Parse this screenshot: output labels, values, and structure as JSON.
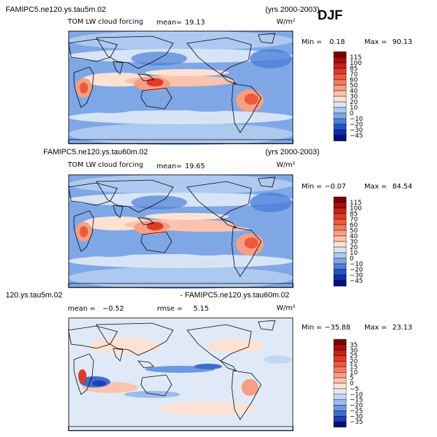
{
  "season": "DJF",
  "chart_data": [
    {
      "type": "heatmap",
      "case_title": "FAMIPC5.ne120.ys.tau5m.02",
      "years": "(yrs 2000-2003)",
      "variable": "TOM LW cloud forcing",
      "mean_label": "mean=",
      "mean": "19.13",
      "units": "W/m²",
      "min_label": "Min =",
      "min": "0.18",
      "max_label": "Max =",
      "max": "90.13",
      "colorbar": {
        "levels": [
          "115",
          "100",
          "85",
          "70",
          "60",
          "50",
          "40",
          "30",
          "20",
          "10",
          "0",
          "−10",
          "−20",
          "−30",
          "−45"
        ],
        "colors": [
          "#7a0000",
          "#a50f0f",
          "#c8201a",
          "#df3b27",
          "#ea5a3d",
          "#f27b5f",
          "#f79e84",
          "#fbc3ad",
          "#fde2d3",
          "#d6e4f5",
          "#adc9ef",
          "#7fa7e6",
          "#4e7fd9",
          "#2253c9",
          "#0d2fa8",
          "#06107a"
        ]
      }
    },
    {
      "type": "heatmap",
      "case_title": "FAMIPC5.ne120.ys.tau60m.02",
      "years": "(yrs 2000-2003)",
      "variable": "TOM LW cloud forcing",
      "mean_label": "mean=",
      "mean": "19.65",
      "units": "W/m²",
      "min_label": "Min =",
      "min": "−0.07",
      "max_label": "Max =",
      "max": "84.54",
      "colorbar": {
        "levels": [
          "115",
          "100",
          "85",
          "70",
          "60",
          "50",
          "40",
          "30",
          "20",
          "10",
          "0",
          "−10",
          "−20",
          "−30",
          "−45"
        ],
        "colors": [
          "#7a0000",
          "#a50f0f",
          "#c8201a",
          "#df3b27",
          "#ea5a3d",
          "#f27b5f",
          "#f79e84",
          "#fbc3ad",
          "#fde2d3",
          "#d6e4f5",
          "#adc9ef",
          "#7fa7e6",
          "#4e7fd9",
          "#2253c9",
          "#0d2fa8",
          "#06107a"
        ]
      }
    },
    {
      "type": "heatmap",
      "case_title_left": "120.ys.tau5m.02",
      "case_title_right": "- FAMIPC5.ne120.ys.tau60m.02",
      "mean_label": "mean =",
      "mean": "−0.52",
      "rmse_label": "rmse =",
      "rmse": "5.15",
      "units": "W/m²",
      "min_label": "Min =",
      "min": "−35.88",
      "max_label": "Max =",
      "max": "23.13",
      "colorbar": {
        "levels": [
          "35",
          "30",
          "25",
          "20",
          "15",
          "10",
          "5",
          "0",
          "−5",
          "−10",
          "−15",
          "−20",
          "−25",
          "−30",
          "−35"
        ],
        "colors": [
          "#7a0000",
          "#a50f0f",
          "#c8201a",
          "#df3b27",
          "#ea5a3d",
          "#f27b5f",
          "#f79e84",
          "#fbc3ad",
          "#fde2d3",
          "#dfe9f7",
          "#c4d7f2",
          "#9dbbea",
          "#6e98df",
          "#3e6cd0",
          "#1b40b5",
          "#06107a"
        ]
      }
    }
  ]
}
